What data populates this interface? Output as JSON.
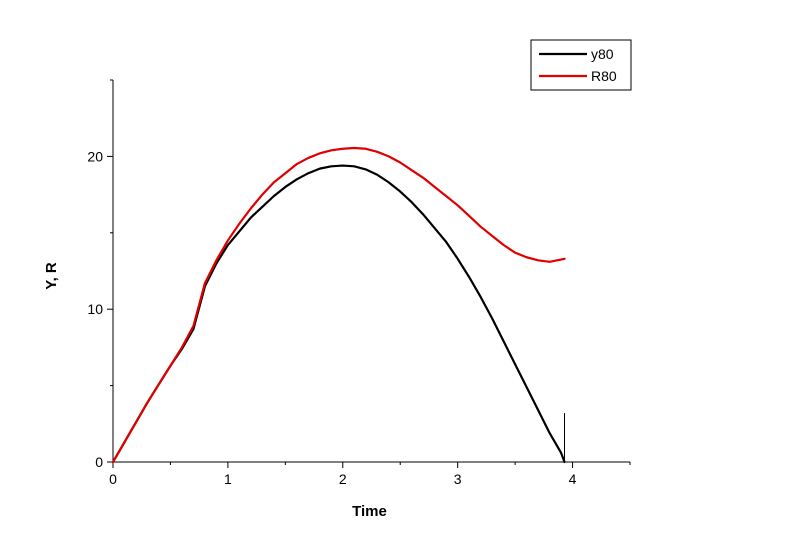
{
  "chart_data": {
    "type": "line",
    "title": "",
    "xlabel": "Time",
    "ylabel": "Y, R",
    "xlim": [
      0,
      4.5
    ],
    "ylim": [
      0,
      25
    ],
    "x_ticks": [
      {
        "value": 0,
        "label": "0"
      },
      {
        "value": 1,
        "label": "1"
      },
      {
        "value": 2,
        "label": "2"
      },
      {
        "value": 3,
        "label": "3"
      },
      {
        "value": 4,
        "label": "4"
      }
    ],
    "y_ticks": [
      {
        "value": 0,
        "label": "0"
      },
      {
        "value": 10,
        "label": "10"
      },
      {
        "value": 20,
        "label": "20"
      }
    ],
    "grid": false,
    "legend_position": "top-right",
    "series": [
      {
        "name": "y80",
        "color": "#000000",
        "points": [
          [
            0.0,
            0.0
          ],
          [
            0.1,
            1.3
          ],
          [
            0.2,
            2.6
          ],
          [
            0.3,
            3.9
          ],
          [
            0.4,
            5.1
          ],
          [
            0.5,
            6.3
          ],
          [
            0.6,
            7.4
          ],
          [
            0.7,
            8.7
          ],
          [
            0.8,
            11.5
          ],
          [
            0.9,
            13.0
          ],
          [
            1.0,
            14.2
          ],
          [
            1.1,
            15.1
          ],
          [
            1.2,
            16.0
          ],
          [
            1.3,
            16.7
          ],
          [
            1.4,
            17.4
          ],
          [
            1.5,
            18.0
          ],
          [
            1.6,
            18.5
          ],
          [
            1.7,
            18.9
          ],
          [
            1.8,
            19.2
          ],
          [
            1.9,
            19.35
          ],
          [
            2.0,
            19.4
          ],
          [
            2.1,
            19.35
          ],
          [
            2.2,
            19.15
          ],
          [
            2.3,
            18.8
          ],
          [
            2.4,
            18.3
          ],
          [
            2.5,
            17.7
          ],
          [
            2.6,
            17.0
          ],
          [
            2.7,
            16.2
          ],
          [
            2.8,
            15.3
          ],
          [
            2.9,
            14.4
          ],
          [
            3.0,
            13.3
          ],
          [
            3.1,
            12.1
          ],
          [
            3.2,
            10.8
          ],
          [
            3.3,
            9.4
          ],
          [
            3.4,
            7.9
          ],
          [
            3.5,
            6.4
          ],
          [
            3.6,
            4.9
          ],
          [
            3.7,
            3.4
          ],
          [
            3.8,
            1.9
          ],
          [
            3.9,
            0.6
          ],
          [
            3.93,
            0.0
          ]
        ]
      },
      {
        "name": "R80",
        "color": "#e00000",
        "points": [
          [
            0.0,
            0.0
          ],
          [
            0.1,
            1.3
          ],
          [
            0.2,
            2.6
          ],
          [
            0.3,
            3.9
          ],
          [
            0.4,
            5.1
          ],
          [
            0.5,
            6.3
          ],
          [
            0.6,
            7.5
          ],
          [
            0.7,
            8.9
          ],
          [
            0.8,
            11.7
          ],
          [
            0.9,
            13.2
          ],
          [
            1.0,
            14.5
          ],
          [
            1.1,
            15.6
          ],
          [
            1.2,
            16.6
          ],
          [
            1.3,
            17.5
          ],
          [
            1.4,
            18.3
          ],
          [
            1.5,
            18.9
          ],
          [
            1.6,
            19.5
          ],
          [
            1.7,
            19.9
          ],
          [
            1.8,
            20.2
          ],
          [
            1.9,
            20.4
          ],
          [
            2.0,
            20.5
          ],
          [
            2.1,
            20.55
          ],
          [
            2.2,
            20.5
          ],
          [
            2.3,
            20.3
          ],
          [
            2.4,
            20.0
          ],
          [
            2.5,
            19.6
          ],
          [
            2.6,
            19.1
          ],
          [
            2.7,
            18.6
          ],
          [
            2.8,
            18.0
          ],
          [
            2.9,
            17.4
          ],
          [
            3.0,
            16.8
          ],
          [
            3.1,
            16.1
          ],
          [
            3.2,
            15.4
          ],
          [
            3.3,
            14.8
          ],
          [
            3.4,
            14.2
          ],
          [
            3.5,
            13.7
          ],
          [
            3.6,
            13.4
          ],
          [
            3.7,
            13.2
          ],
          [
            3.8,
            13.1
          ],
          [
            3.9,
            13.25
          ],
          [
            3.93,
            13.3
          ]
        ]
      }
    ],
    "annotations": [
      {
        "type": "vertical-marker",
        "x": 3.93,
        "y_from": 0,
        "y_to": 3.2,
        "color": "#000000"
      }
    ]
  }
}
